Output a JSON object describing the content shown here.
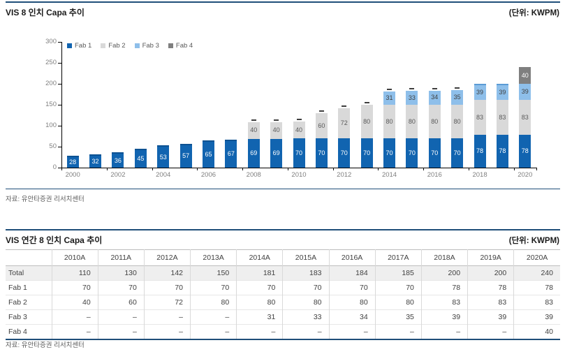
{
  "chart": {
    "title": "VIS 8 인치 Capa 추이",
    "unit": "(단위: KWPM)",
    "source": "자료: 유안타증권 리서치센터"
  },
  "chart_data": {
    "type": "bar",
    "stacked": true,
    "title": "VIS 8 인치 Capa 추이",
    "unit_label": "(단위: KWPM)",
    "categories": [
      2000,
      2001,
      2002,
      2003,
      2004,
      2005,
      2006,
      2007,
      2008,
      2009,
      2010,
      2011,
      2012,
      2013,
      2014,
      2015,
      2016,
      2017,
      2018,
      2019,
      2020
    ],
    "series": [
      {
        "name": "Fab 1",
        "color": "#1164b0",
        "label_color": "#ffffff",
        "values": [
          28,
          32,
          36,
          45,
          53,
          57,
          65,
          67,
          69,
          69,
          70,
          70,
          70,
          70,
          70,
          70,
          70,
          70,
          78,
          78,
          78
        ]
      },
      {
        "name": "Fab 2",
        "color": "#d9d9d9",
        "label_color": "#595959",
        "values": [
          null,
          null,
          null,
          null,
          null,
          null,
          null,
          null,
          40,
          40,
          40,
          60,
          72,
          80,
          80,
          80,
          80,
          80,
          83,
          83,
          83
        ]
      },
      {
        "name": "Fab 3",
        "color": "#8ebfea",
        "label_color": "#3f3f3f",
        "values": [
          null,
          null,
          null,
          null,
          null,
          null,
          null,
          null,
          null,
          null,
          null,
          null,
          null,
          null,
          31,
          33,
          34,
          35,
          39,
          39,
          39
        ]
      },
      {
        "name": "Fab 4",
        "color": "#7f7f7f",
        "label_color": "#ffffff",
        "values": [
          null,
          null,
          null,
          null,
          null,
          null,
          null,
          null,
          null,
          null,
          null,
          null,
          null,
          null,
          null,
          null,
          null,
          null,
          null,
          null,
          40
        ]
      }
    ],
    "ylim": [
      0,
      300
    ],
    "yticks": [
      0,
      50,
      100,
      150,
      200,
      250,
      300
    ],
    "xtick_labels": [
      "2000",
      "2002",
      "2004",
      "2006",
      "2008",
      "2010",
      "2012",
      "2014",
      "2016",
      "2018",
      "2020"
    ],
    "legend_position": "top-left",
    "grid": false
  },
  "table": {
    "title": "VIS 연간 8 인치 Capa 추이",
    "unit": "(단위: KWPM)",
    "source": "자료: 유안타증권 리서치센터",
    "columns": [
      "",
      "2010A",
      "2011A",
      "2012A",
      "2013A",
      "2014A",
      "2015A",
      "2016A",
      "2017A",
      "2018A",
      "2019A",
      "2020A"
    ],
    "rows": [
      {
        "label": "Total",
        "values": [
          "110",
          "130",
          "142",
          "150",
          "181",
          "183",
          "184",
          "185",
          "200",
          "200",
          "240"
        ]
      },
      {
        "label": "Fab 1",
        "values": [
          "70",
          "70",
          "70",
          "70",
          "70",
          "70",
          "70",
          "70",
          "78",
          "78",
          "78"
        ]
      },
      {
        "label": "Fab 2",
        "values": [
          "40",
          "60",
          "72",
          "80",
          "80",
          "80",
          "80",
          "80",
          "83",
          "83",
          "83"
        ]
      },
      {
        "label": "Fab 3",
        "values": [
          "–",
          "–",
          "–",
          "–",
          "31",
          "33",
          "34",
          "35",
          "39",
          "39",
          "39"
        ]
      },
      {
        "label": "Fab 4",
        "values": [
          "–",
          "–",
          "–",
          "–",
          "–",
          "–",
          "–",
          "–",
          "–",
          "–",
          "40"
        ]
      }
    ]
  },
  "colors": {
    "rule_navy": "#1f4e79",
    "axis": "#000000",
    "tick_label": "#7f7f7f",
    "legend_text": "#595959"
  }
}
